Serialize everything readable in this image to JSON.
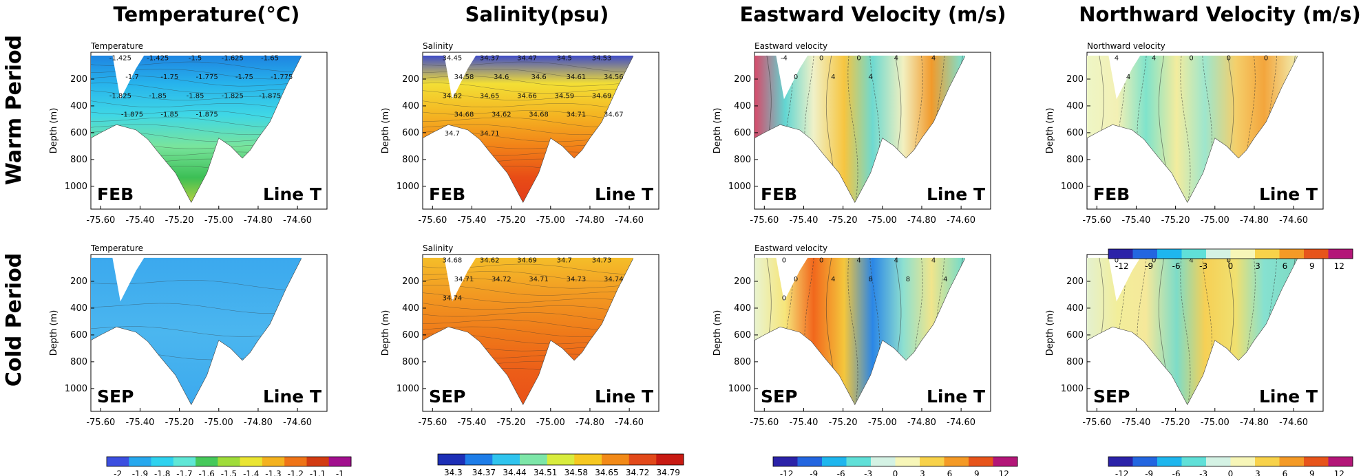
{
  "figure": {
    "column_titles": [
      "Temperature(°C)",
      "Salinity(psu)",
      "Eastward Velocity (m/s)",
      "Northward Velocity (m/s)"
    ],
    "row_titles": [
      "Warm Period",
      "Cold Period"
    ],
    "y_axis_label": "Depth (m)",
    "x_ticks": [
      "-75.60",
      "-75.40",
      "-75.20",
      "-75.00",
      "-74.80",
      "-74.60"
    ],
    "y_ticks": [
      "200",
      "400",
      "600",
      "800",
      "1000"
    ],
    "line_label": "Line T"
  },
  "chart_data": [
    {
      "type": "heatmap",
      "variable": "Temperature",
      "title": "Temperature",
      "month": "FEB",
      "line": "Line T",
      "xlabel": "",
      "ylabel": "Depth (m)",
      "xlim": [
        -75.65,
        -74.45
      ],
      "ylim": [
        1170,
        0
      ],
      "y_reversed": true,
      "contour_labels": [
        "-1.425",
        "-1.425",
        "-1.5",
        "-1.625",
        "-1.65",
        "-1.7",
        "-1.75",
        "-1.775",
        "-1.75",
        "-1.775",
        "-1.825",
        "-1.85",
        "-1.85",
        "-1.825",
        "-1.875",
        "-1.875",
        "-1.85",
        "-1.875"
      ],
      "colorbar": {
        "ticks": [
          "-2",
          "-1.9",
          "-1.8",
          "-1.7",
          "-1.6",
          "-1.5",
          "-1.4",
          "-1.3",
          "-1.2",
          "-1.1",
          "-1"
        ],
        "colors": [
          "#3c4fe0",
          "#27a8ee",
          "#2fd2ef",
          "#5fe7d6",
          "#46c95b",
          "#9fdc3a",
          "#eae532",
          "#f4b21f",
          "#ef7417",
          "#d23b12",
          "#a2108e"
        ]
      }
    },
    {
      "type": "heatmap",
      "variable": "Salinity",
      "title": "Salinity",
      "month": "FEB",
      "line": "Line T",
      "xlabel": "",
      "ylabel": "Depth (m)",
      "xlim": [
        -75.65,
        -74.45
      ],
      "ylim": [
        1170,
        0
      ],
      "y_reversed": true,
      "contour_labels": [
        "34.45",
        "34.37",
        "34.47",
        "34.5",
        "34.53",
        "34.58",
        "34.6",
        "34.6",
        "34.61",
        "34.56",
        "34.62",
        "34.65",
        "34.66",
        "34.59",
        "34.69",
        "34.68",
        "34.62",
        "34.68",
        "34.71",
        "34.67",
        "34.7",
        "34.71"
      ],
      "colorbar": {
        "ticks": [
          "34.3",
          "34.37",
          "34.44",
          "34.51",
          "34.58",
          "34.65",
          "34.72",
          "34.79"
        ],
        "colors": [
          "#1d2fb6",
          "#1e7de8",
          "#30c4ee",
          "#7de6a8",
          "#d8ec3e",
          "#f6c821",
          "#f28a18",
          "#e2491a",
          "#c81a12"
        ]
      }
    },
    {
      "type": "heatmap",
      "variable": "Eastward velocity",
      "title": "Eastward velocity",
      "month": "FEB",
      "line": "Line T",
      "xlabel": "",
      "ylabel": "Depth (m)",
      "xlim": [
        -75.65,
        -74.45
      ],
      "ylim": [
        1170,
        0
      ],
      "y_reversed": true,
      "contour_labels": [
        "-4",
        "0",
        "0",
        "4",
        "4",
        "0",
        "4",
        "4"
      ],
      "colorbar": {
        "ticks": [
          "-12",
          "-9",
          "-6",
          "-3",
          "0",
          "3",
          "6",
          "9",
          "12"
        ],
        "colors": [
          "#2b22a8",
          "#2366e0",
          "#1eb6ee",
          "#60e0d8",
          "#d4f2e4",
          "#f7f6b8",
          "#f8d24a",
          "#f49a26",
          "#e7541b",
          "#b31678"
        ]
      }
    },
    {
      "type": "heatmap",
      "variable": "Northward velocity",
      "title": "Northward velocity",
      "month": "FEB",
      "line": "Line T",
      "xlabel": "",
      "ylabel": "Depth (m)",
      "xlim": [
        -75.65,
        -74.45
      ],
      "ylim": [
        1170,
        0
      ],
      "y_reversed": true,
      "contour_labels": [
        "4",
        "4",
        "0",
        "0",
        "0",
        "4"
      ],
      "colorbar": {
        "ticks": [
          "-12",
          "-9",
          "-6",
          "-3",
          "0",
          "3",
          "6",
          "9",
          "12"
        ],
        "colors": [
          "#2b22a8",
          "#2366e0",
          "#1eb6ee",
          "#60e0d8",
          "#d4f2e4",
          "#f7f6b8",
          "#f8d24a",
          "#f49a26",
          "#e7541b",
          "#b31678"
        ]
      }
    },
    {
      "type": "heatmap",
      "variable": "Temperature",
      "title": "Temperature",
      "month": "SEP",
      "line": "Line T",
      "xlabel": "",
      "ylabel": "Depth (m)",
      "xlim": [
        -75.65,
        -74.45
      ],
      "ylim": [
        1170,
        0
      ],
      "y_reversed": true,
      "contour_labels": []
    },
    {
      "type": "heatmap",
      "variable": "Salinity",
      "title": "Salinity",
      "month": "SEP",
      "line": "Line T",
      "xlabel": "",
      "ylabel": "Depth (m)",
      "xlim": [
        -75.65,
        -74.45
      ],
      "ylim": [
        1170,
        0
      ],
      "y_reversed": true,
      "contour_labels": [
        "34.68",
        "34.62",
        "34.69",
        "34.7",
        "34.73",
        "34.71",
        "34.72",
        "34.71",
        "34.73",
        "34.74",
        "34.74"
      ]
    },
    {
      "type": "heatmap",
      "variable": "Eastward velocity",
      "title": "Eastward velocity",
      "month": "SEP",
      "line": "Line T",
      "xlabel": "",
      "ylabel": "Depth (m)",
      "xlim": [
        -75.65,
        -74.45
      ],
      "ylim": [
        1170,
        0
      ],
      "y_reversed": true,
      "contour_labels": [
        "0",
        "0",
        "4",
        "4",
        "4",
        "0",
        "4",
        "8",
        "8",
        "4",
        "0"
      ]
    },
    {
      "type": "heatmap",
      "variable": "Northward velocity",
      "title": "",
      "month": "SEP",
      "line": "Line T",
      "xlabel": "",
      "ylabel": "Depth (m)",
      "xlim": [
        -75.65,
        -74.45
      ],
      "ylim": [
        1170,
        0
      ],
      "y_reversed": true,
      "contour_labels": [
        "0",
        "0",
        "4",
        "0"
      ]
    }
  ]
}
